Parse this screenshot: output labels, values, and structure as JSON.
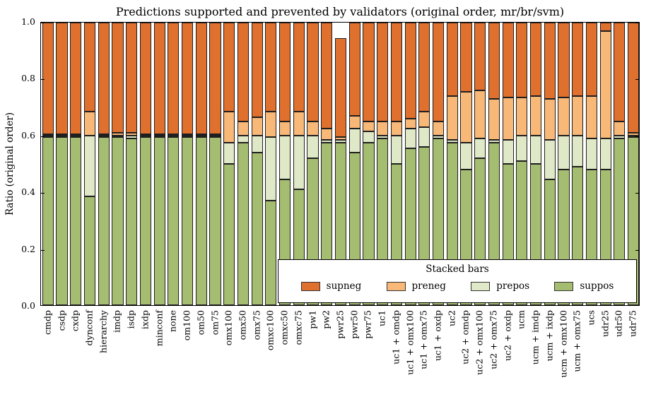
{
  "figure": {
    "title": "Predictions supported and prevented by validators (original order, mr/br/svm)",
    "ylabel": "Ratio (original order)"
  },
  "legend": {
    "title": "Stacked bars",
    "entries": [
      {
        "label": "supneg",
        "color": "#e0702e"
      },
      {
        "label": "preneg",
        "color": "#f8b878"
      },
      {
        "label": "prepos",
        "color": "#dfe9c8"
      },
      {
        "label": "suppos",
        "color": "#a5bd70"
      }
    ]
  },
  "chart_data": {
    "type": "bar",
    "variant": "stacked",
    "title": "Predictions supported and prevented by validators (original order, mr/br/svm)",
    "xlabel": "",
    "ylabel": "Ratio (original order)",
    "ylim": [
      0.0,
      1.0
    ],
    "yticks": [
      0.0,
      0.2,
      0.4,
      0.6,
      0.8,
      1.0
    ],
    "grid": false,
    "legend_position": "lower right inside plot",
    "categories": [
      "cmdp",
      "csdp",
      "cxdp",
      "dynconf",
      "hierarchy",
      "imdp",
      "isdp",
      "ixdp",
      "minconf",
      "none",
      "om100",
      "om50",
      "om75",
      "omx100",
      "omx50",
      "omx75",
      "omxc100",
      "omxc50",
      "omxc75",
      "pw1",
      "pw2",
      "pwr25",
      "pwr50",
      "pwr75",
      "uc1",
      "uc1 + omdp",
      "uc1 + omx100",
      "uc1 + omx75",
      "uc1 + oxdp",
      "uc2",
      "uc2 + omdp",
      "uc2 + omx100",
      "uc2 + omx75",
      "uc2 + oxdp",
      "ucm",
      "ucm + imdp",
      "ucm + ixdp",
      "ucm + omx100",
      "ucm + omx75",
      "ucs",
      "udr25",
      "udr50",
      "udr75"
    ],
    "series": [
      {
        "name": "suppos",
        "color": "#a5bd70",
        "values": [
          0.595,
          0.595,
          0.595,
          0.385,
          0.595,
          0.595,
          0.59,
          0.595,
          0.595,
          0.595,
          0.595,
          0.595,
          0.595,
          0.5,
          0.575,
          0.54,
          0.37,
          0.445,
          0.41,
          0.52,
          0.575,
          0.575,
          0.54,
          0.575,
          0.59,
          0.5,
          0.555,
          0.56,
          0.59,
          0.575,
          0.48,
          0.52,
          0.575,
          0.5,
          0.51,
          0.5,
          0.445,
          0.48,
          0.49,
          0.48,
          0.48,
          0.59,
          0.595
        ]
      },
      {
        "name": "prepos",
        "color": "#dfe9c8",
        "values": [
          0.005,
          0.005,
          0.005,
          0.215,
          0.005,
          0.005,
          0.01,
          0.005,
          0.005,
          0.005,
          0.005,
          0.005,
          0.005,
          0.075,
          0.025,
          0.06,
          0.225,
          0.155,
          0.19,
          0.08,
          0.01,
          0.01,
          0.085,
          0.04,
          0.01,
          0.1,
          0.07,
          0.07,
          0.01,
          0.01,
          0.095,
          0.07,
          0.01,
          0.085,
          0.09,
          0.1,
          0.14,
          0.12,
          0.11,
          0.11,
          0.11,
          0.01,
          0.005
        ]
      },
      {
        "name": "preneg",
        "color": "#f8b878",
        "values": [
          0.005,
          0.005,
          0.005,
          0.085,
          0.005,
          0.01,
          0.01,
          0.005,
          0.005,
          0.005,
          0.005,
          0.005,
          0.005,
          0.11,
          0.05,
          0.065,
          0.09,
          0.05,
          0.085,
          0.05,
          0.04,
          0.01,
          0.045,
          0.035,
          0.05,
          0.05,
          0.035,
          0.055,
          0.05,
          0.155,
          0.18,
          0.17,
          0.145,
          0.15,
          0.135,
          0.14,
          0.145,
          0.135,
          0.14,
          0.15,
          0.38,
          0.05,
          0.01
        ]
      },
      {
        "name": "supneg",
        "color": "#e0702e",
        "values": [
          0.395,
          0.395,
          0.395,
          0.315,
          0.395,
          0.39,
          0.39,
          0.395,
          0.395,
          0.395,
          0.395,
          0.395,
          0.395,
          0.315,
          0.35,
          0.335,
          0.315,
          0.35,
          0.315,
          0.35,
          0.375,
          0.35,
          0.33,
          0.35,
          0.35,
          0.35,
          0.34,
          0.315,
          0.35,
          0.26,
          0.245,
          0.24,
          0.27,
          0.265,
          0.265,
          0.26,
          0.27,
          0.265,
          0.26,
          0.26,
          0.03,
          0.35,
          0.39
        ]
      }
    ]
  }
}
